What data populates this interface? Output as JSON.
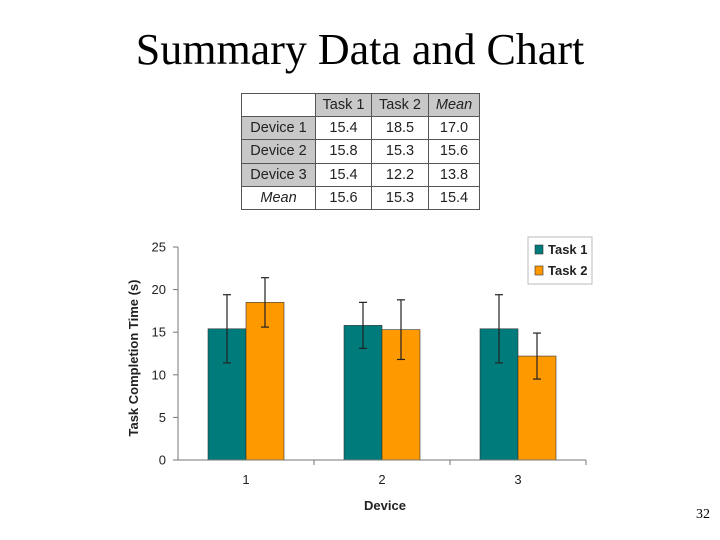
{
  "slide": {
    "title": "Summary Data and Chart",
    "page_number": "32"
  },
  "summary_table": {
    "columns": [
      "Task 1",
      "Task 2",
      "Mean"
    ],
    "rows": [
      {
        "label": "Device 1",
        "values": [
          "15.4",
          "18.5",
          "17.0"
        ]
      },
      {
        "label": "Device 2",
        "values": [
          "15.8",
          "15.3",
          "15.6"
        ]
      },
      {
        "label": "Device 3",
        "values": [
          "15.4",
          "12.2",
          "13.8"
        ]
      },
      {
        "label": "Mean",
        "values": [
          "15.6",
          "15.3",
          "15.4"
        ]
      }
    ]
  },
  "chart_data": {
    "type": "bar",
    "categories": [
      "1",
      "2",
      "3"
    ],
    "series": [
      {
        "name": "Task 1",
        "color": "#007b7b",
        "values": [
          15.4,
          15.8,
          15.4
        ],
        "error": [
          4.0,
          2.7,
          4.0
        ]
      },
      {
        "name": "Task 2",
        "color": "#ff9900",
        "values": [
          18.5,
          15.3,
          12.2
        ],
        "error": [
          2.9,
          3.5,
          2.7
        ]
      }
    ],
    "xlabel": "Device",
    "ylabel": "Task Completion Time (s)",
    "ylim": [
      0,
      25
    ],
    "yticks": [
      0,
      5,
      10,
      15,
      20,
      25
    ],
    "grid": false,
    "legend_position": "top-right"
  }
}
